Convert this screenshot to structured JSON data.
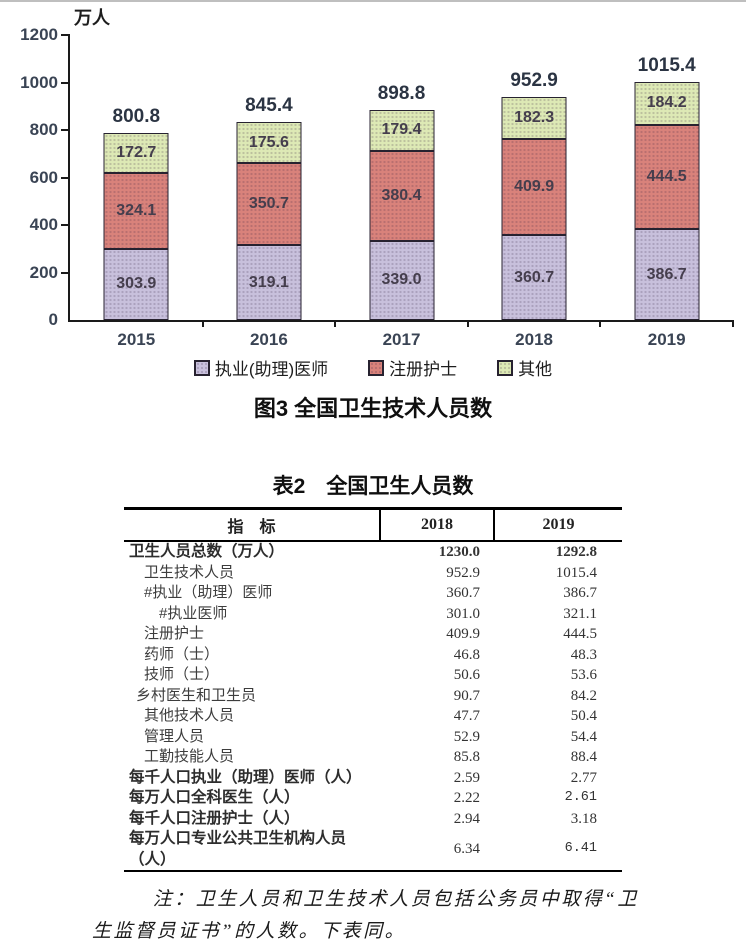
{
  "chart_data": {
    "type": "bar",
    "stacked": true,
    "title": "图3 全国卫生技术人员数",
    "unit": "万人",
    "categories": [
      "2015",
      "2016",
      "2017",
      "2018",
      "2019"
    ],
    "series": [
      {
        "name": "执业(助理)医师",
        "color": "#c8c0dc",
        "values": [
          303.9,
          319.1,
          339.0,
          360.7,
          386.7
        ]
      },
      {
        "name": "注册护士",
        "color": "#d9827b",
        "values": [
          324.1,
          350.7,
          380.4,
          409.9,
          444.5
        ]
      },
      {
        "name": "其他",
        "color": "#dde9b5",
        "values": [
          172.7,
          175.6,
          179.4,
          182.3,
          184.2
        ]
      }
    ],
    "totals": [
      800.8,
      845.4,
      898.8,
      952.9,
      1015.4
    ],
    "ylim": [
      0,
      1200
    ],
    "y_ticks": [
      0,
      200,
      400,
      600,
      800,
      1000,
      1200
    ],
    "legend_position": "bottom",
    "grid": false
  },
  "table": {
    "title": "表2　全国卫生人员数",
    "columns": [
      "指　标",
      "2018",
      "2019"
    ],
    "rows": [
      {
        "label": "卫生人员总数（万人）",
        "v2018": "1230.0",
        "v2019": "1292.8",
        "bold": true,
        "boldValues": true,
        "indent": 0
      },
      {
        "label": "卫生技术人员",
        "v2018": "952.9",
        "v2019": "1015.4",
        "indent": 1
      },
      {
        "label": "#执业（助理）医师",
        "v2018": "360.7",
        "v2019": "386.7",
        "indent": 1
      },
      {
        "label": "#执业医师",
        "v2018": "301.0",
        "v2019": "321.1",
        "indent": 2
      },
      {
        "label": "注册护士",
        "v2018": "409.9",
        "v2019": "444.5",
        "indent": 1
      },
      {
        "label": "药师（士）",
        "v2018": "46.8",
        "v2019": "48.3",
        "indent": 1
      },
      {
        "label": "技师（士）",
        "v2018": "50.6",
        "v2019": "53.6",
        "indent": 1
      },
      {
        "label": "乡村医生和卫生员",
        "v2018": "90.7",
        "v2019": "84.2",
        "indent": 0.5
      },
      {
        "label": "其他技术人员",
        "v2018": "47.7",
        "v2019": "50.4",
        "indent": 1
      },
      {
        "label": "管理人员",
        "v2018": "52.9",
        "v2019": "54.4",
        "indent": 1
      },
      {
        "label": "工勤技能人员",
        "v2018": "85.8",
        "v2019": "88.4",
        "indent": 1
      },
      {
        "label": "每千人口执业（助理）医师（人）",
        "v2018": "2.59",
        "v2019": "2.77",
        "bold": true,
        "indent": 0
      },
      {
        "label": "每万人口全科医生（人）",
        "v2018": "2.22",
        "v2019": "2.61",
        "bold": true,
        "indent": 0,
        "mono2019": true
      },
      {
        "label": "每千人口注册护士（人）",
        "v2018": "2.94",
        "v2019": "3.18",
        "bold": true,
        "indent": 0
      },
      {
        "label": "每万人口专业公共卫生机构人员（人）",
        "v2018": "6.34",
        "v2019": "6.41",
        "bold": true,
        "indent": 0,
        "mono2019": true
      }
    ]
  },
  "note": {
    "text": "注：卫生人员和卫生技术人员包括公务员中取得“卫生监督员证书”的人数。下表同。"
  }
}
